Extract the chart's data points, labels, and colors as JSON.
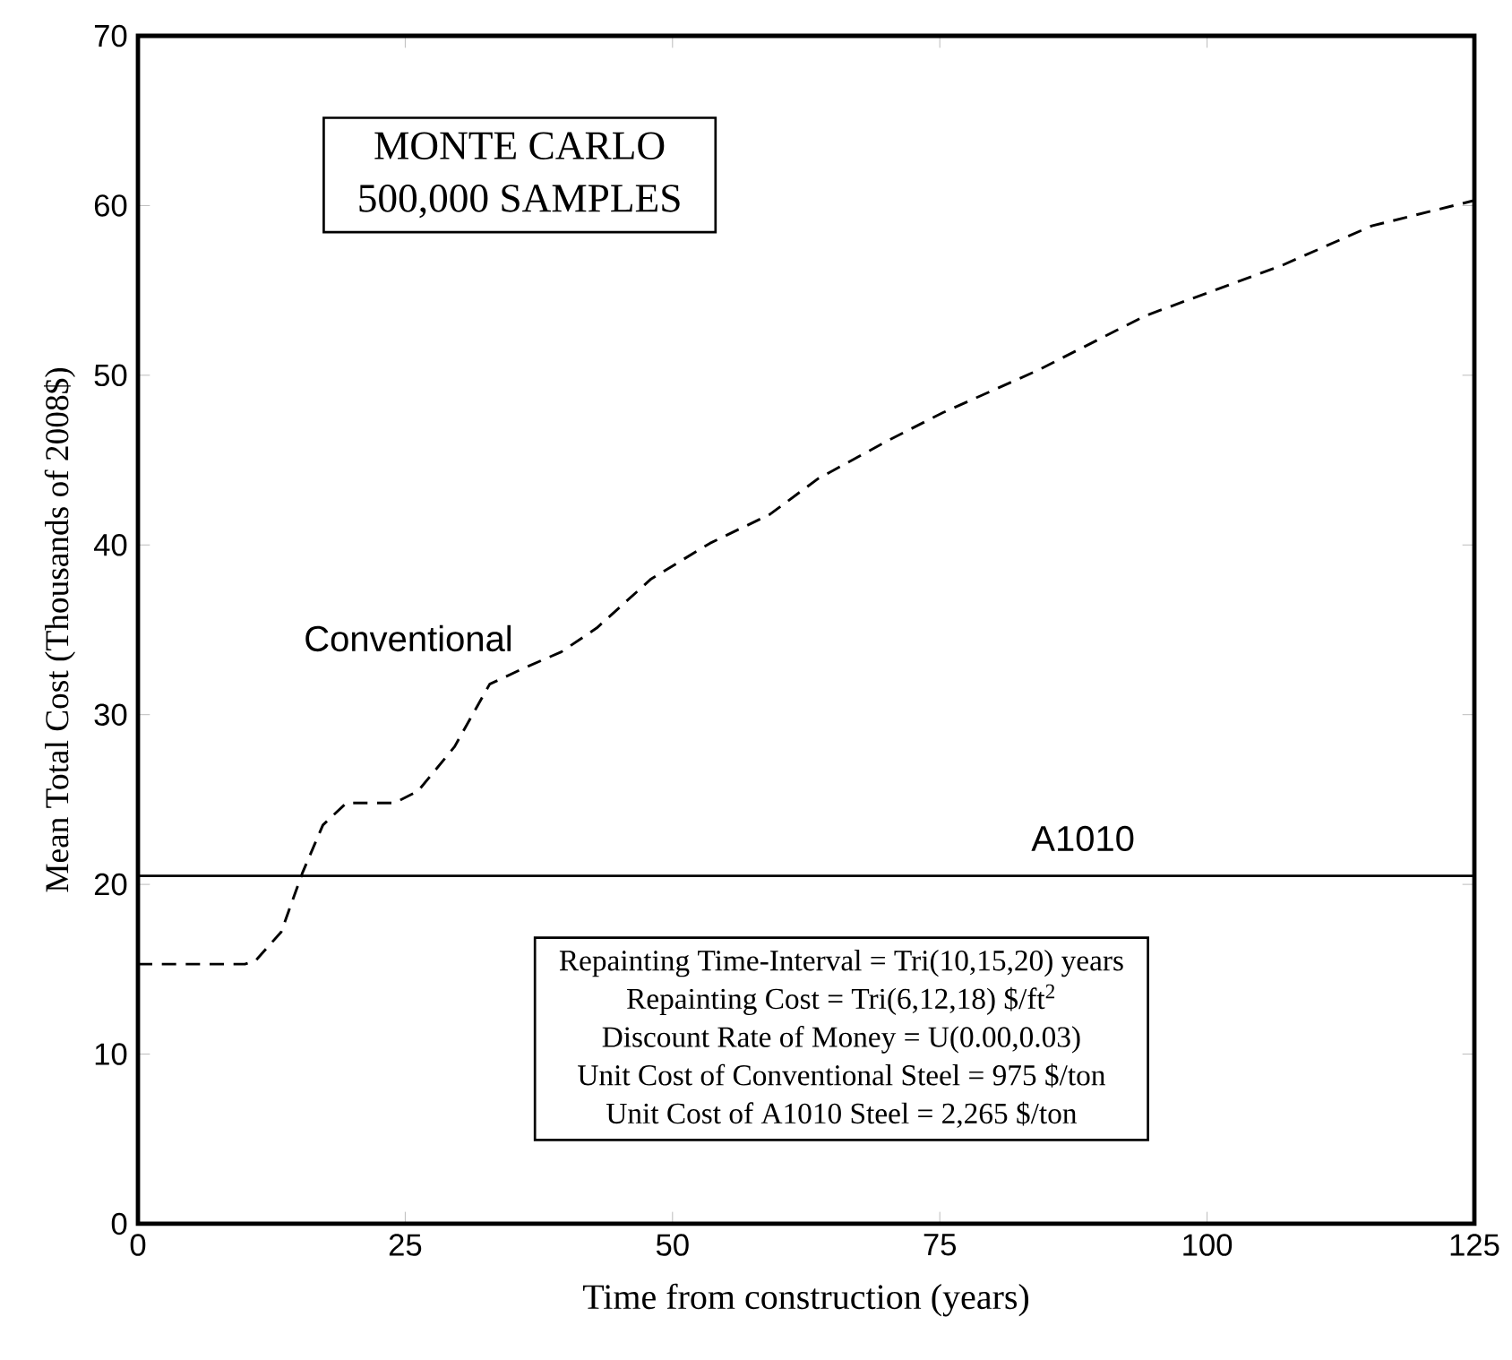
{
  "chart_data": {
    "type": "line",
    "xlabel": "Time from construction (years)",
    "ylabel": "Mean Total Cost (Thousands of 2008$)",
    "xlim": [
      0,
      125
    ],
    "ylim": [
      0,
      70
    ],
    "xticks": [
      0,
      25,
      50,
      75,
      100,
      125
    ],
    "yticks": [
      0,
      10,
      20,
      30,
      40,
      50,
      60,
      70
    ],
    "grid": false,
    "legend": false,
    "series": [
      {
        "name": "Conventional",
        "color": "#000000",
        "line_style": "dashed",
        "x": [
          0,
          10,
          11,
          13.4,
          15.4,
          17.3,
          19.5,
          24,
          26.2,
          29.6,
          32.9,
          36.3,
          39.6,
          42.9,
          48,
          53.5,
          59.1,
          63.6,
          70.3,
          75.3,
          84.2,
          94.2,
          107.1,
          115.4,
          125
        ],
        "values": [
          15.3,
          15.3,
          15.5,
          17.2,
          20.7,
          23.5,
          24.8,
          24.8,
          25.5,
          28.1,
          31.8,
          32.8,
          33.7,
          35.1,
          38,
          40.1,
          41.8,
          43.9,
          46.2,
          47.8,
          50.3,
          53.5,
          56.5,
          58.8,
          60.3
        ]
      },
      {
        "name": "A1010",
        "color": "#000000",
        "line_style": "solid",
        "x": [
          0,
          125
        ],
        "values": [
          20.5,
          20.5
        ]
      }
    ],
    "annotations": [
      "MONTE CARLO",
      "500,000 SAMPLES",
      "Repainting Time-Interval = Tri(10,15,20) years",
      "Repainting Cost = Tri(6,12,18) $/ft$^{2}$",
      "Discount Rate of Money = U(0.00,0.03)",
      "Unit Cost of Conventional Steel = 975 $/ton",
      "Unit Cost of A1010 Steel = 2,265 $/ton"
    ]
  }
}
